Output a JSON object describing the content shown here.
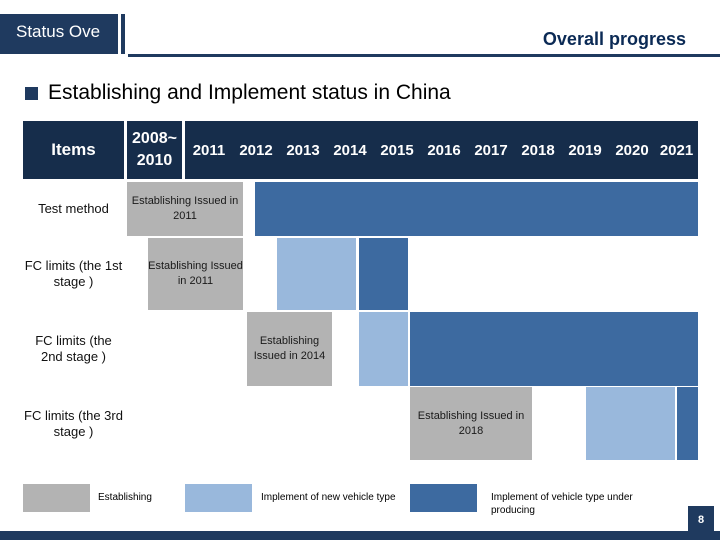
{
  "header": {
    "status_label": "Status Ove",
    "title": "Overall progress"
  },
  "subtitle": "Establishing and Implement status in China",
  "colors": {
    "navy": "#1f3a5f",
    "establishing": "#b3b3b3",
    "implement_new": "#99b8dc",
    "implement_producing": "#3d6aa0"
  },
  "table": {
    "items_header": "Items",
    "first_period": "2008~ 2010",
    "years": [
      "2011",
      "2012",
      "2013",
      "2014",
      "2015",
      "2016",
      "2017",
      "2018",
      "2019",
      "2020",
      "2021"
    ],
    "rows": [
      {
        "label": "Test method",
        "establishing_text": "Establishing Issued in 2011"
      },
      {
        "label": "FC limits (the 1st stage )",
        "establishing_text": "Establishing Issued in 2011"
      },
      {
        "label": "FC limits (the 2nd stage )",
        "establishing_text": "Establishing Issued in 2014"
      },
      {
        "label": "FC limits (the 3rd stage )",
        "establishing_text": "Establishing Issued in 2018"
      }
    ]
  },
  "legend": {
    "establishing": "Establishing",
    "implement_new": "Implement of new vehicle type",
    "implement_producing": "Implement of vehicle type under producing"
  },
  "page_number": "8"
}
